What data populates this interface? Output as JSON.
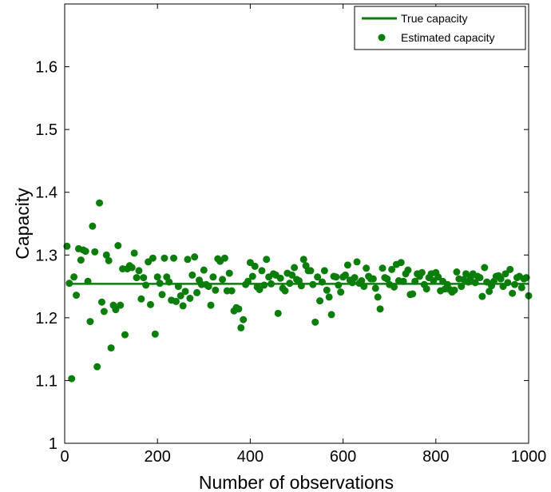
{
  "chart_data": {
    "type": "scatter",
    "title": "",
    "xlabel": "Number of observations",
    "ylabel": "Capacity",
    "xlim": [
      0,
      1000
    ],
    "ylim": [
      1.0,
      1.7
    ],
    "xticks": [
      0,
      200,
      400,
      600,
      800,
      1000
    ],
    "yticks": [
      1,
      1.1,
      1.2,
      1.3,
      1.4,
      1.5,
      1.6
    ],
    "xtick_labels": [
      "0",
      "200",
      "400",
      "600",
      "800",
      "1000"
    ],
    "ytick_labels": [
      "1",
      "1.1",
      "1.2",
      "1.3",
      "1.4",
      "1.5",
      "1.6"
    ],
    "grid": false,
    "legend_position": "top-right",
    "color": "#0a7d0a",
    "series": [
      {
        "name": "True capacity",
        "type": "line",
        "x": [
          10,
          1000
        ],
        "y": [
          1.254,
          1.254
        ]
      },
      {
        "name": "Estimated capacity",
        "type": "scatter",
        "x": [
          5,
          10,
          15,
          20,
          25,
          30,
          35,
          40,
          45,
          50,
          55,
          60,
          65,
          70,
          75,
          80,
          85,
          90,
          95,
          100,
          105,
          110,
          115,
          120,
          125,
          130,
          135,
          140,
          145,
          150,
          155,
          160,
          165,
          170,
          175,
          180,
          185,
          190,
          195,
          200,
          205,
          210,
          215,
          220,
          225,
          230,
          235,
          240,
          245,
          250,
          255,
          260,
          265,
          270,
          275,
          280,
          285,
          290,
          295,
          300,
          305,
          310,
          315,
          320,
          325,
          330,
          335,
          340,
          345,
          350,
          355,
          360,
          365,
          370,
          375,
          380,
          385,
          390,
          395,
          400,
          405,
          410,
          415,
          420,
          425,
          430,
          435,
          440,
          445,
          450,
          455,
          460,
          465,
          470,
          475,
          480,
          485,
          490,
          495,
          500,
          505,
          510,
          515,
          520,
          525,
          530,
          535,
          540,
          545,
          550,
          555,
          560,
          565,
          570,
          575,
          580,
          585,
          590,
          595,
          600,
          605,
          610,
          615,
          620,
          625,
          630,
          635,
          640,
          645,
          650,
          655,
          660,
          665,
          670,
          675,
          680,
          685,
          690,
          695,
          700,
          705,
          710,
          715,
          720,
          725,
          730,
          735,
          740,
          745,
          750,
          755,
          760,
          765,
          770,
          775,
          780,
          785,
          790,
          795,
          800,
          805,
          810,
          815,
          820,
          825,
          830,
          835,
          840,
          845,
          850,
          855,
          860,
          865,
          870,
          875,
          880,
          885,
          890,
          895,
          900,
          905,
          910,
          915,
          920,
          925,
          930,
          935,
          940,
          945,
          950,
          955,
          960,
          965,
          970,
          975,
          980,
          985,
          990,
          995,
          1000
        ],
        "y": [
          1.314,
          1.255,
          1.103,
          1.265,
          1.236,
          1.31,
          1.292,
          1.308,
          1.306,
          1.258,
          1.194,
          1.346,
          1.305,
          1.122,
          1.383,
          1.225,
          1.21,
          1.3,
          1.291,
          1.152,
          1.22,
          1.213,
          1.315,
          1.22,
          1.278,
          1.173,
          1.278,
          1.283,
          1.28,
          1.303,
          1.264,
          1.275,
          1.23,
          1.264,
          1.252,
          1.289,
          1.221,
          1.295,
          1.174,
          1.265,
          1.255,
          1.237,
          1.295,
          1.265,
          1.257,
          1.228,
          1.295,
          1.226,
          1.25,
          1.235,
          1.219,
          1.242,
          1.293,
          1.231,
          1.268,
          1.297,
          1.24,
          1.26,
          1.253,
          1.276,
          1.253,
          1.25,
          1.22,
          1.265,
          1.244,
          1.294,
          1.29,
          1.261,
          1.295,
          1.243,
          1.271,
          1.243,
          1.211,
          1.216,
          1.214,
          1.184,
          1.197,
          1.253,
          1.258,
          1.288,
          1.266,
          1.282,
          1.249,
          1.245,
          1.275,
          1.252,
          1.293,
          1.265,
          1.254,
          1.27,
          1.268,
          1.207,
          1.263,
          1.247,
          1.243,
          1.271,
          1.255,
          1.268,
          1.28,
          1.261,
          1.259,
          1.251,
          1.293,
          1.283,
          1.275,
          1.275,
          1.253,
          1.193,
          1.265,
          1.227,
          1.257,
          1.275,
          1.244,
          1.233,
          1.205,
          1.266,
          1.265,
          1.252,
          1.241,
          1.265,
          1.268,
          1.284,
          1.26,
          1.256,
          1.264,
          1.289,
          1.255,
          1.259,
          1.25,
          1.279,
          1.266,
          1.262,
          1.262,
          1.247,
          1.233,
          1.214,
          1.279,
          1.264,
          1.262,
          1.253,
          1.277,
          1.249,
          1.285,
          1.259,
          1.288,
          1.258,
          1.27,
          1.276,
          1.237,
          1.238,
          1.258,
          1.27,
          1.266,
          1.272,
          1.253,
          1.246,
          1.264,
          1.27,
          1.259,
          1.272,
          1.265,
          1.243,
          1.258,
          1.246,
          1.253,
          1.245,
          1.241,
          1.244,
          1.273,
          1.262,
          1.25,
          1.261,
          1.27,
          1.257,
          1.264,
          1.27,
          1.256,
          1.266,
          1.264,
          1.234,
          1.28,
          1.257,
          1.242,
          1.251,
          1.258,
          1.266,
          1.267,
          1.262,
          1.25,
          1.27,
          1.256,
          1.277,
          1.239,
          1.253,
          1.264,
          1.266,
          1.248,
          1.262,
          1.264,
          1.235
        ]
      }
    ]
  }
}
